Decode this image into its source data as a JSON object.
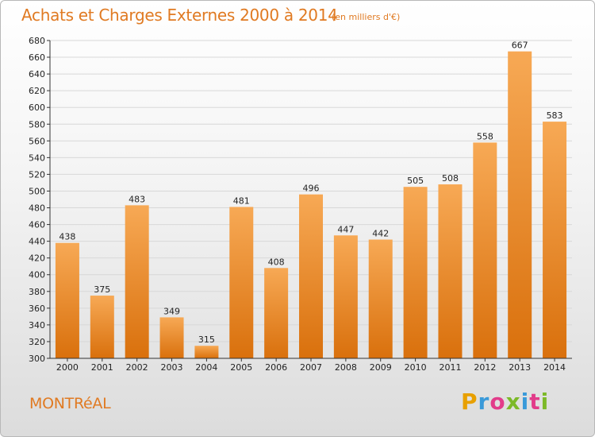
{
  "header": {
    "title": "Achats et Charges Externes 2000 à 2014",
    "subtitle": "(en milliers d'€)"
  },
  "footer": {
    "city": "MONTRéAL",
    "logo": [
      "P",
      "r",
      "o",
      "x",
      "i",
      "t",
      "i"
    ],
    "logo_colors": [
      "#e8a000",
      "#3a9ad9",
      "#e23c8a",
      "#7cb928",
      "#3a9ad9",
      "#e23c8a",
      "#7cb928"
    ]
  },
  "chart_data": {
    "type": "bar",
    "title": "Achats et Charges Externes 2000 à 2014",
    "categories": [
      "2000",
      "2001",
      "2002",
      "2003",
      "2004",
      "2005",
      "2006",
      "2007",
      "2008",
      "2009",
      "2010",
      "2011",
      "2012",
      "2013",
      "2014"
    ],
    "values": [
      438,
      375,
      483,
      349,
      315,
      481,
      408,
      496,
      447,
      442,
      505,
      508,
      558,
      667,
      583
    ],
    "ylim": [
      300,
      680
    ],
    "yticks": [
      "300",
      "320",
      "340",
      "360",
      "380",
      "400",
      "420",
      "440",
      "460",
      "480",
      "500",
      "520",
      "540",
      "560",
      "580",
      "600",
      "620",
      "640",
      "660",
      "680"
    ],
    "grid": true,
    "colors": {
      "bar_top": "#f7a955",
      "bar_bottom": "#d9700c",
      "grid": "#d8d8d8"
    }
  }
}
